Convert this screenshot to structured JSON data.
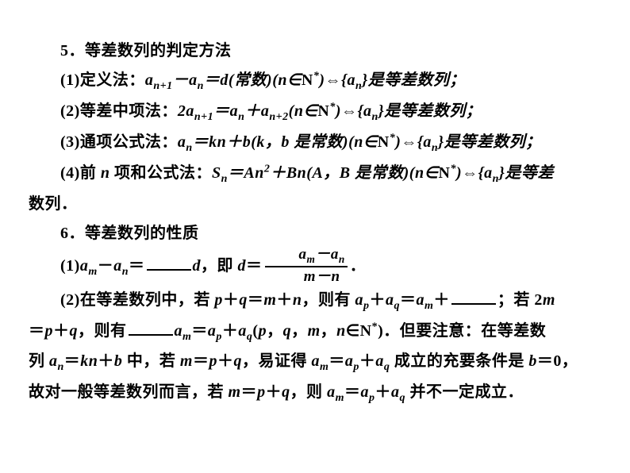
{
  "section5": {
    "title": "5．等差数列的判定方法",
    "item1_pre": "(1)定义法：",
    "item1_math": "a<sub class=\"sub\">n+1</sub>－a<sub class=\"sub\">n</sub>＝d(常数)(n∈<span class=\"rm\">N</span><sup class=\"sup\">*</sup>)⇔{a<sub class=\"sub\">n</sub>}是等差数列；",
    "item2_pre": "(2)等差中项法：",
    "item2_math": "2a<sub class=\"sub\">n+1</sub>＝a<sub class=\"sub\">n</sub>＋a<sub class=\"sub\">n+2</sub>(n∈<span class=\"rm\">N</span><sup class=\"sup\">*</sup>)⇔{a<sub class=\"sub\">n</sub>}是等差数列；",
    "item3_pre": "(3)通项公式法：",
    "item3_math": "a<sub class=\"sub\">n</sub>＝kn＋b(k，b 是常数)(n∈<span class=\"rm\">N</span><sup class=\"sup\">*</sup>)⇔{a<sub class=\"sub\">n</sub>}是等差数列；",
    "item4_pre": "(4)前 <span class=\"mi\">n</span> 项和公式法：",
    "item4_math": "S<sub class=\"sub\">n</sub>＝An<sup class=\"sup\">2</sup>＋Bn(A，B 是常数)(n∈<span class=\"rm\">N</span><sup class=\"sup\">*</sup>)⇔{a<sub class=\"sub\">n</sub>}是等差",
    "item4_tail": "数列．"
  },
  "section6": {
    "title": "6．等差数列的性质",
    "item1_pre": "(1)<span class=\"mi\">a<sub class=\"sub\">m</sub></span>－<span class=\"mi\">a<sub class=\"sub\">n</sub></span>＝",
    "item1_mid": "<span class=\"mi\">d</span>，即 <span class=\"mi\">d</span>＝",
    "frac_num": "a<sub class=\"sub\">m</sub>－a<sub class=\"sub\">n</sub>",
    "frac_den": "m－n",
    "item1_end": "．",
    "item2_a": "(2)在等差数列中，若 <span class=\"mi\">p</span>＋<span class=\"mi\">q</span>＝<span class=\"mi\">m</span>＋<span class=\"mi\">n</span>，则有 <span class=\"mi\">a<sub class=\"sub\">p</sub></span>＋<span class=\"mi\">a<sub class=\"sub\">q</sub></span>＝<span class=\"mi\">a<sub class=\"sub\">m</sub></span>＋",
    "item2_b": "；若 2<span class=\"mi\">m</span>",
    "item2_c": "＝<span class=\"mi\">p</span>＋<span class=\"mi\">q</span>，则有",
    "item2_d": "<span class=\"mi\">a<sub class=\"sub\">m</sub></span>＝<span class=\"mi\">a<sub class=\"sub\">p</sub></span>＋<span class=\"mi\">a<sub class=\"sub\">q</sub></span>(<span class=\"mi\">p</span>，<span class=\"mi\">q</span>，<span class=\"mi\">m</span>，<span class=\"mi\">n</span>∈<span class=\"rm\">N</span><sup class=\"sup\">*</sup>)．但要注意：在等差数",
    "item2_e": "列 <span class=\"mi\">a<sub class=\"sub\">n</sub></span>＝<span class=\"mi\">kn</span>＋<span class=\"mi\">b</span> 中，若 <span class=\"mi\">m</span>＝<span class=\"mi\">p</span>＋<span class=\"mi\">q</span>，易证得 <span class=\"mi\">a<sub class=\"sub\">m</sub></span>＝<span class=\"mi\">a<sub class=\"sub\">p</sub></span>＋<span class=\"mi\">a<sub class=\"sub\">q</sub></span> 成立的充要条件是 <span class=\"mi\">b</span>＝0，",
    "item2_f": "故对一般等差数列而言，若 <span class=\"mi\">m</span>＝<span class=\"mi\">p</span>＋<span class=\"mi\">q</span>，则 <span class=\"mi\">a<sub class=\"sub\">m</sub></span>＝<span class=\"mi\">a<sub class=\"sub\">p</sub></span>＋<span class=\"mi\">a<sub class=\"sub\">q</sub></span> 并不一定成立．"
  }
}
